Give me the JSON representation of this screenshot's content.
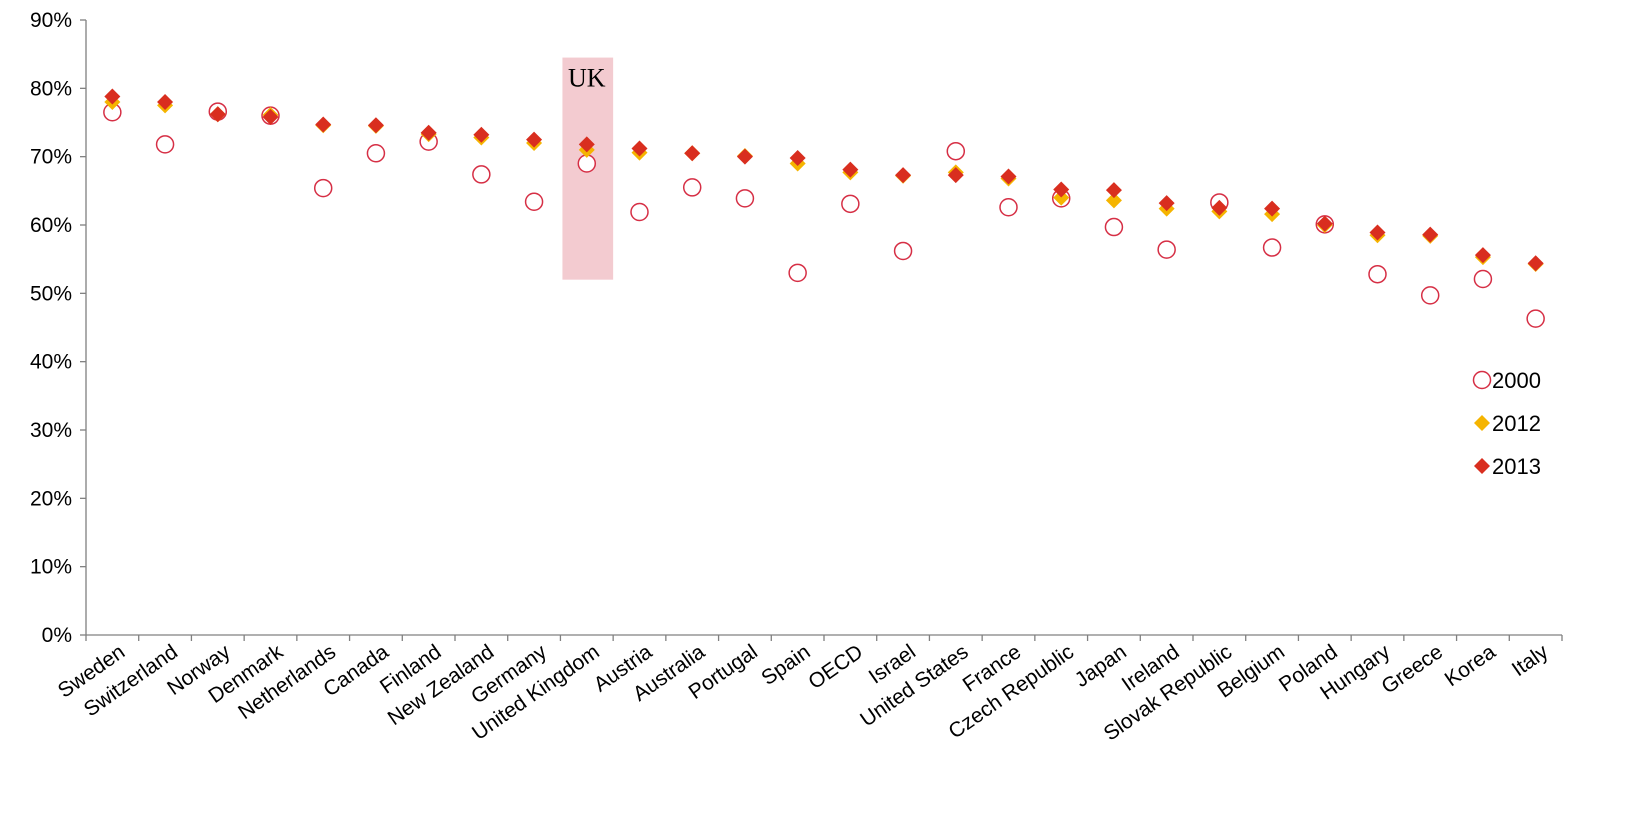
{
  "chart_data": {
    "type": "scatter",
    "categories": [
      "Sweden",
      "Switzerland",
      "Norway",
      "Denmark",
      "Netherlands",
      "Canada",
      "Finland",
      "New Zealand",
      "Germany",
      "United Kingdom",
      "Austria",
      "Australia",
      "Portugal",
      "Spain",
      "OECD",
      "Israel",
      "United States",
      "France",
      "Czech Republic",
      "Japan",
      "Ireland",
      "Slovak Republic",
      "Belgium",
      "Poland",
      "Hungary",
      "Greece",
      "Korea",
      "Italy"
    ],
    "series": [
      {
        "name": "2000",
        "marker": "open-circle",
        "color": "#d62f45",
        "values": [
          76.5,
          71.8,
          76.6,
          76.0,
          65.4,
          70.5,
          72.2,
          67.4,
          63.4,
          69.0,
          61.9,
          65.5,
          63.9,
          53.0,
          63.1,
          56.2,
          70.8,
          62.6,
          63.9,
          59.7,
          56.4,
          63.3,
          56.7,
          60.1,
          52.8,
          49.7,
          52.1,
          46.3
        ]
      },
      {
        "name": "2012",
        "marker": "diamond",
        "color": "#f5b400",
        "values": [
          78.0,
          77.5,
          76.2,
          76.1,
          74.6,
          74.5,
          73.3,
          72.8,
          72.0,
          71.0,
          70.6,
          70.5,
          70.1,
          69.0,
          67.7,
          67.2,
          67.7,
          66.8,
          64.0,
          63.6,
          62.4,
          62.0,
          61.6,
          60.0,
          58.5,
          58.4,
          55.3,
          54.3
        ]
      },
      {
        "name": "2013",
        "marker": "diamond",
        "color": "#d92e1f",
        "values": [
          78.8,
          78.0,
          76.2,
          75.8,
          74.7,
          74.6,
          73.5,
          73.2,
          72.5,
          71.8,
          71.2,
          70.5,
          70.0,
          69.8,
          68.1,
          67.3,
          67.3,
          67.1,
          65.2,
          65.1,
          63.2,
          62.5,
          62.4,
          60.2,
          58.9,
          58.6,
          55.6,
          54.4
        ]
      }
    ],
    "yticks": [
      "0%",
      "10%",
      "20%",
      "30%",
      "40%",
      "50%",
      "60%",
      "70%",
      "80%",
      "90%"
    ],
    "ylim": [
      0,
      90
    ],
    "highlight": {
      "category": "United Kingdom",
      "label": "UK",
      "color": "#f3cbd0",
      "range": [
        52,
        84.5
      ]
    },
    "legend_position": "right",
    "grid": false
  }
}
